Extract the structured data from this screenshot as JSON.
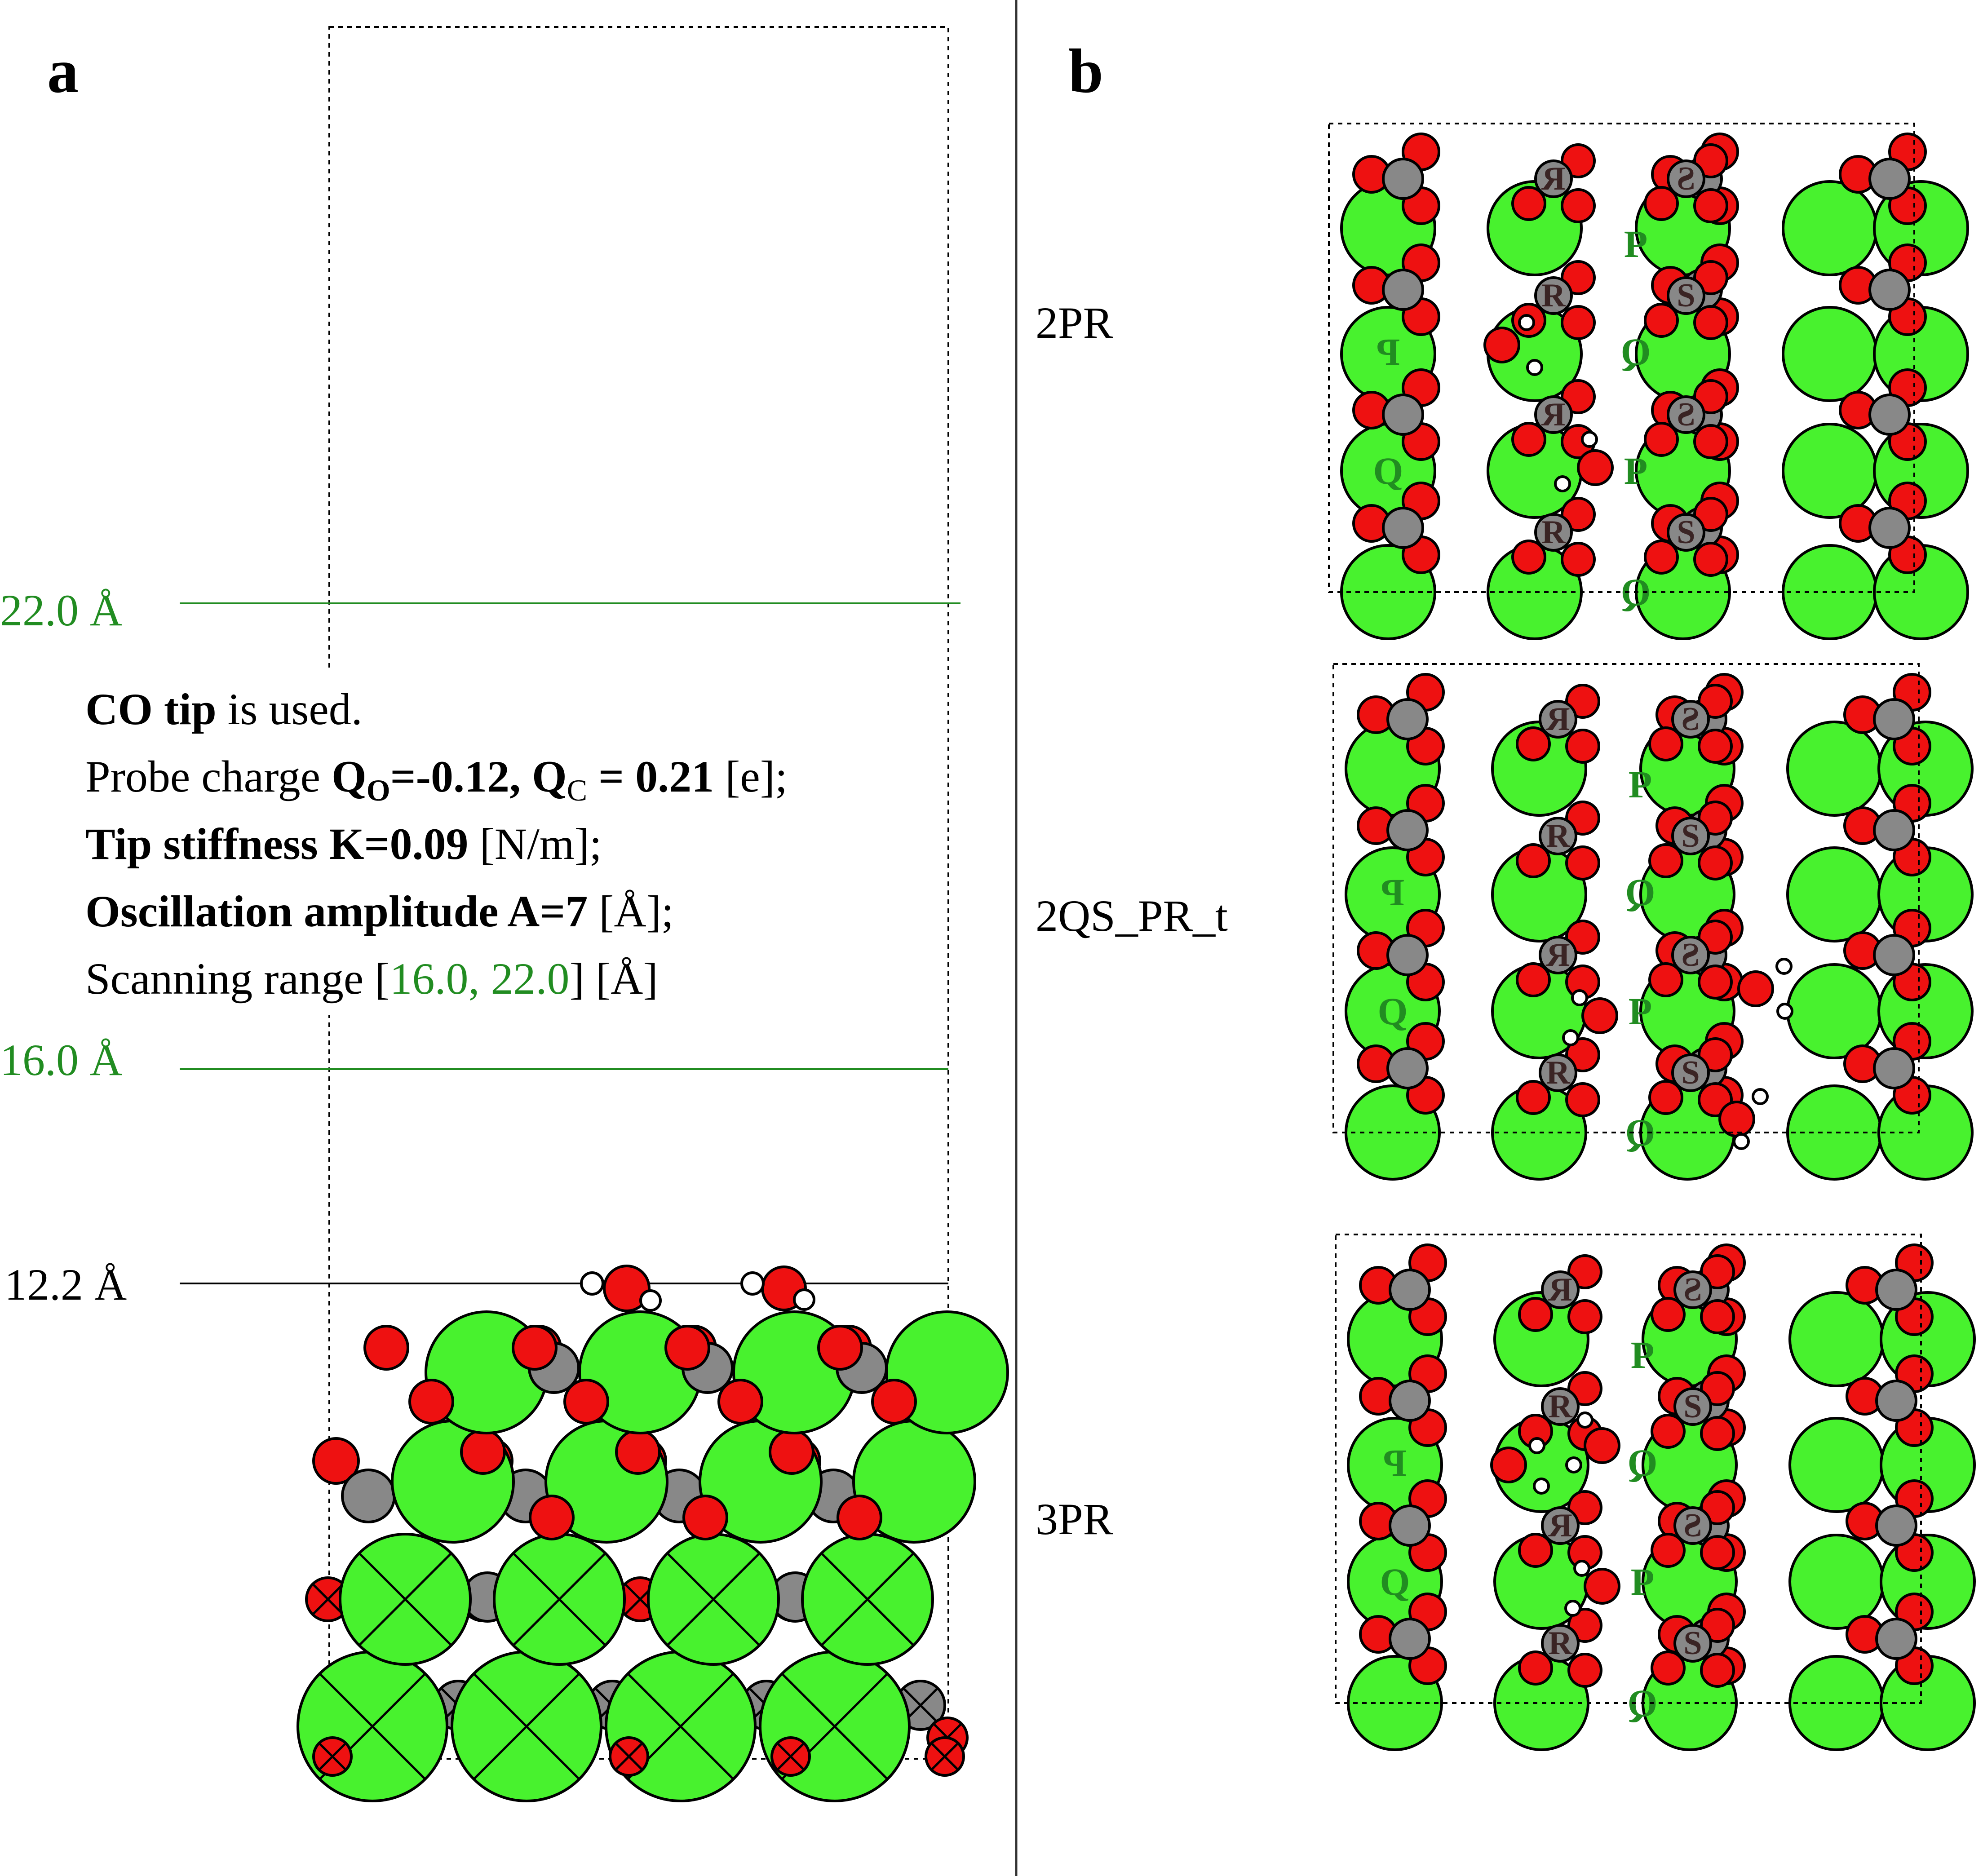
{
  "panels": {
    "a": {
      "letter": "a"
    },
    "b": {
      "letter": "b"
    }
  },
  "heights": [
    {
      "text": "22.0 Å",
      "color": "#218c21"
    },
    {
      "text": "16.0 Å",
      "color": "#218c21"
    },
    {
      "text": "12.2 Å",
      "color": "#000000"
    }
  ],
  "info": {
    "line1": {
      "bold": "CO tip",
      "rest": " is used."
    },
    "line2": {
      "prefix": "Probe charge ",
      "qo_q": "Q",
      "qo_sub": "O",
      "qo_val": "=-0.12, ",
      "qc_q": "Q",
      "qc_sub": "C",
      "qc_val": " = 0.21",
      "unit": " [e];"
    },
    "line3": {
      "bold": "Tip stiffness K=0.09",
      "unit": " [N/m];"
    },
    "line4": {
      "bold": "Oscillation amplitude A=7",
      "unit": " [Å];"
    },
    "line5": {
      "prefix": "Scanning range [",
      "range": "16.0, 22.0",
      "suffix": "]  [Å]"
    }
  },
  "structures": [
    {
      "label": "2PR"
    },
    {
      "label": "2QS_PR_t"
    },
    {
      "label": "3PR"
    }
  ],
  "colors": {
    "calcium": "#48f22e",
    "oxygen": "#ee1111",
    "carbon": "#888888",
    "hydrogen": "#ffffff",
    "height_green": "#218c21",
    "ca_letter": "#218c21",
    "c_letter": "#3a2424"
  },
  "site_letters": {
    "P": "P",
    "Q": "Q",
    "R": "R",
    "S": "S"
  }
}
